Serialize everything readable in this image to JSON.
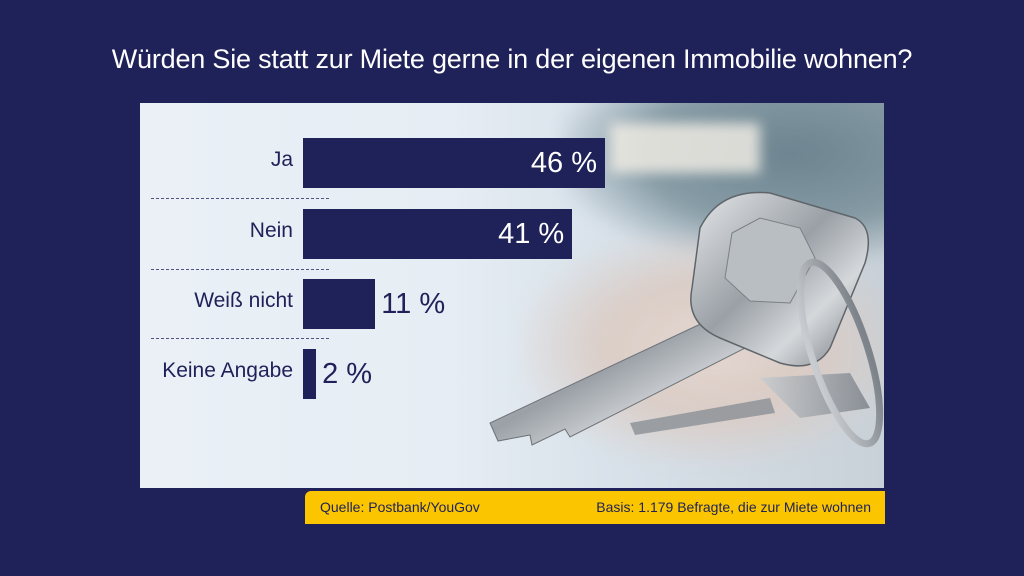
{
  "title": "Würden Sie statt zur Miete gerne in der eigenen Immobilie wohnen?",
  "colors": {
    "background": "#1f2159",
    "bar": "#1f2159",
    "footer": "#fbc600"
  },
  "chart_data": {
    "type": "bar",
    "orientation": "horizontal",
    "title": "Würden Sie statt zur Miete gerne in der eigenen Immobilie wohnen?",
    "categories": [
      "Ja",
      "Nein",
      "Weiß nicht",
      "Keine Angabe"
    ],
    "values": [
      46,
      41,
      11,
      2
    ],
    "value_labels": [
      "46 %",
      "41 %",
      "11 %",
      "2 %"
    ],
    "unit": "%",
    "xlim": [
      0,
      46
    ]
  },
  "footer": {
    "source": "Quelle: Postbank/YouGov",
    "basis": "Basis: 1.179 Befragte, die zur Miete wohnen"
  }
}
